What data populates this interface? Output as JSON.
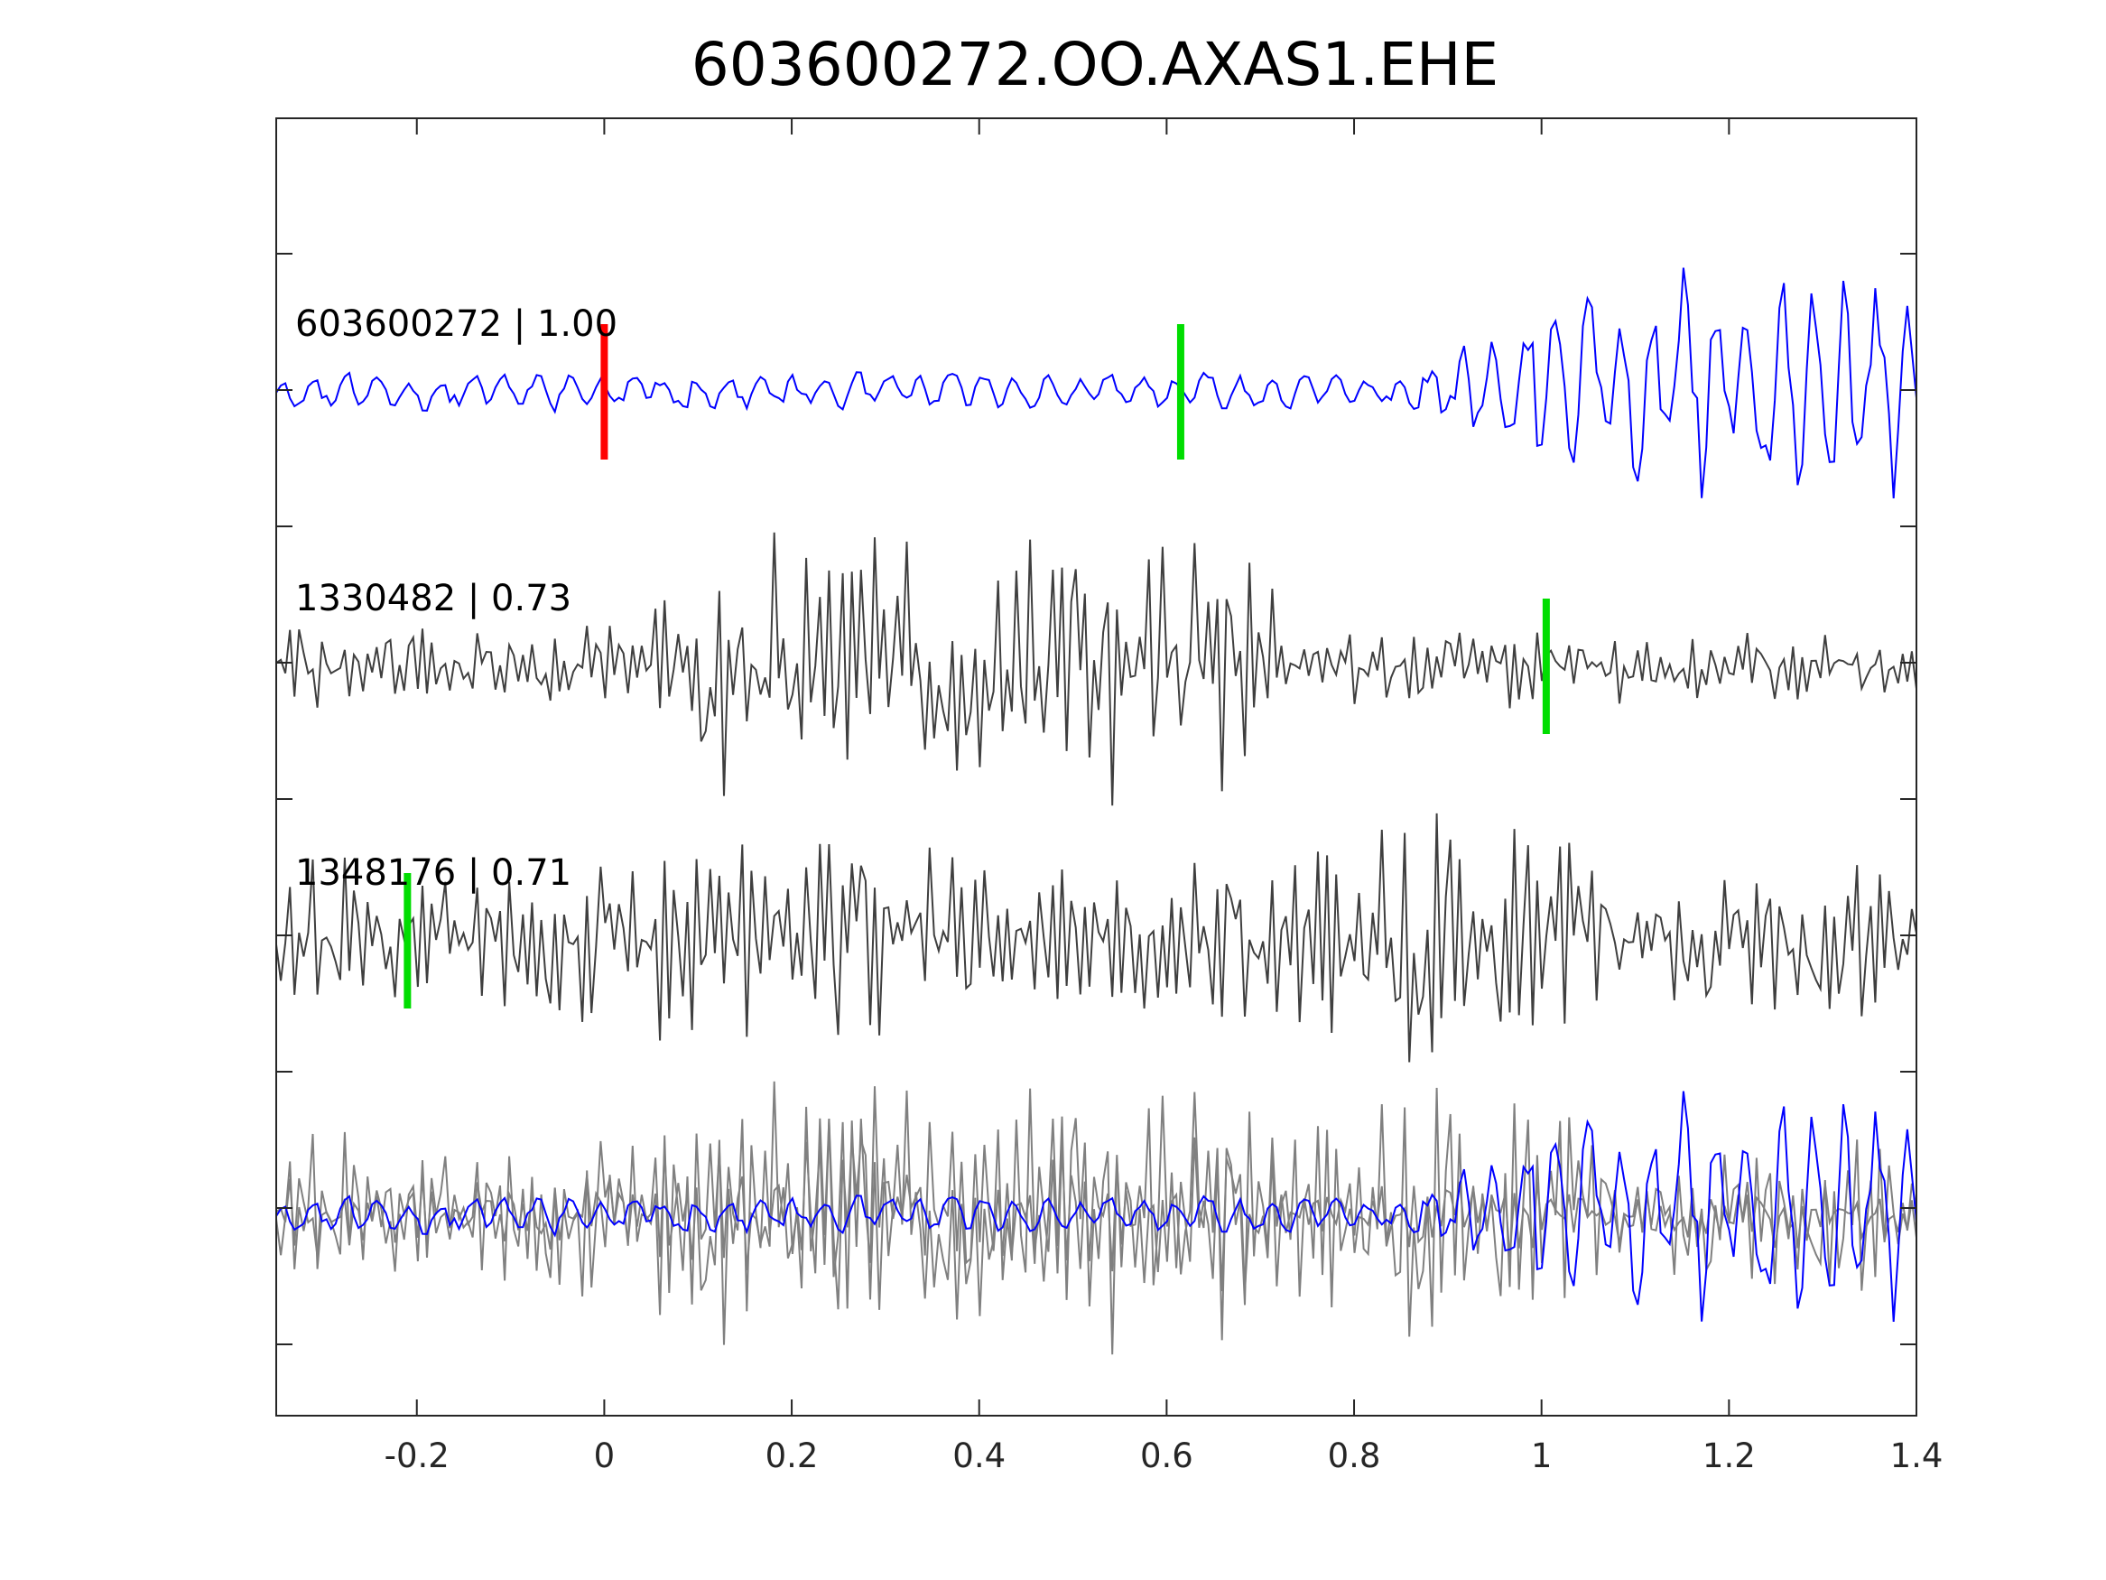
{
  "chart_data": {
    "type": "line",
    "title": "603600272.OO.AXAS1.EHE",
    "xlabel": "",
    "ylabel": "",
    "xlim": [
      -0.35,
      1.4
    ],
    "x_ticks": [
      "-0.2",
      "0",
      "0.2",
      "0.4",
      "0.6",
      "0.8",
      "1",
      "1.2",
      "1.4"
    ],
    "x_tick_values": [
      -0.2,
      0,
      0.2,
      0.4,
      0.6,
      0.8,
      1,
      1.2,
      1.4
    ],
    "y_tick_count": 9,
    "grid": false,
    "colors": {
      "master": "#0000ff",
      "match": "#3f3f3f",
      "overlay": "#808080",
      "pick_red": "#ff0000",
      "pick_green": "#00dd00"
    },
    "traces": [
      {
        "label": "603600272 | 1.00",
        "id": "603600272",
        "correlation": 1.0,
        "color": "#0000ff",
        "picks": [
          {
            "x": 0.0,
            "color": "#ff0000"
          },
          {
            "x": 0.615,
            "color": "#00dd00"
          }
        ]
      },
      {
        "label": "1330482 | 0.73",
        "id": "1330482",
        "correlation": 0.73,
        "color": "#3f3f3f",
        "picks": [
          {
            "x": 1.005,
            "color": "#00dd00"
          }
        ]
      },
      {
        "label": "1348176 | 0.71",
        "id": "1348176",
        "correlation": 0.71,
        "color": "#3f3f3f",
        "picks": [
          {
            "x": -0.21,
            "color": "#00dd00"
          }
        ]
      }
    ]
  }
}
